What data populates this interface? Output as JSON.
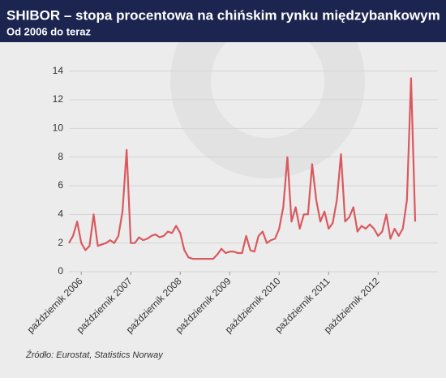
{
  "chart_data": {
    "type": "line",
    "title": "SHIBOR – stopa procentowa na chińskim rynku międzybankowym",
    "subtitle": "Od 2006 do teraz",
    "source": "Źródło: Eurostat, Statistics Norway",
    "x": [
      "2006-07",
      "2006-08",
      "2006-09",
      "2006-10",
      "2006-11",
      "2006-12",
      "2007-01",
      "2007-02",
      "2007-03",
      "2007-04",
      "2007-05",
      "2007-06",
      "2007-07",
      "2007-08",
      "2007-09",
      "2007-10",
      "2007-11",
      "2007-12",
      "2008-01",
      "2008-02",
      "2008-03",
      "2008-04",
      "2008-05",
      "2008-06",
      "2008-07",
      "2008-08",
      "2008-09",
      "2008-10",
      "2008-11",
      "2008-12",
      "2009-01",
      "2009-02",
      "2009-03",
      "2009-04",
      "2009-05",
      "2009-06",
      "2009-07",
      "2009-08",
      "2009-09",
      "2009-10",
      "2009-11",
      "2009-12",
      "2010-01",
      "2010-02",
      "2010-03",
      "2010-04",
      "2010-05",
      "2010-06",
      "2010-07",
      "2010-08",
      "2010-09",
      "2010-10",
      "2010-11",
      "2010-12",
      "2011-01",
      "2011-02",
      "2011-03",
      "2011-04",
      "2011-05",
      "2011-06",
      "2011-07",
      "2011-08",
      "2011-09",
      "2011-10",
      "2011-11",
      "2011-12",
      "2012-01",
      "2012-02",
      "2012-03",
      "2012-04",
      "2012-05",
      "2012-06",
      "2012-07",
      "2012-08",
      "2012-09",
      "2012-10",
      "2012-11",
      "2012-12",
      "2013-01",
      "2013-02",
      "2013-03",
      "2013-04",
      "2013-05",
      "2013-06",
      "2013-07"
    ],
    "series": [
      {
        "color": "#d9595f",
        "values": [
          2.0,
          2.5,
          3.5,
          2.0,
          1.5,
          1.8,
          4.0,
          1.8,
          1.9,
          2.0,
          2.2,
          2.0,
          2.5,
          4.2,
          8.5,
          2.0,
          2.0,
          2.4,
          2.2,
          2.3,
          2.5,
          2.6,
          2.4,
          2.5,
          2.8,
          2.7,
          3.2,
          2.7,
          1.5,
          1.0,
          0.9,
          0.9,
          0.9,
          0.9,
          0.9,
          0.9,
          1.2,
          1.6,
          1.3,
          1.4,
          1.4,
          1.3,
          1.3,
          2.5,
          1.5,
          1.4,
          2.5,
          2.8,
          2.0,
          2.2,
          2.3,
          3.0,
          4.5,
          8.0,
          3.5,
          4.5,
          3.0,
          4.0,
          4.0,
          7.5,
          5.0,
          3.5,
          4.2,
          3.0,
          3.4,
          5.0,
          8.2,
          3.5,
          3.8,
          4.5,
          2.8,
          3.2,
          3.0,
          3.3,
          3.0,
          2.5,
          2.8,
          4.0,
          2.3,
          3.0,
          2.5,
          3.0,
          5.0,
          13.5,
          3.5
        ]
      }
    ],
    "xlim": [
      "2006-07",
      "2013-07"
    ],
    "xticks": [
      {
        "value": "2006-10",
        "label": "październik 2006"
      },
      {
        "value": "2007-10",
        "label": "październik 2007"
      },
      {
        "value": "2008-10",
        "label": "październik 2008"
      },
      {
        "value": "2009-10",
        "label": "październik 2009"
      },
      {
        "value": "2010-10",
        "label": "październik 2010"
      },
      {
        "value": "2011-10",
        "label": "październik 2011"
      },
      {
        "value": "2012-10",
        "label": "październik 2012"
      }
    ],
    "ylim": [
      0,
      15
    ],
    "yticks": [
      0,
      2,
      4,
      6,
      8,
      10,
      12,
      14
    ],
    "grid": true
  }
}
